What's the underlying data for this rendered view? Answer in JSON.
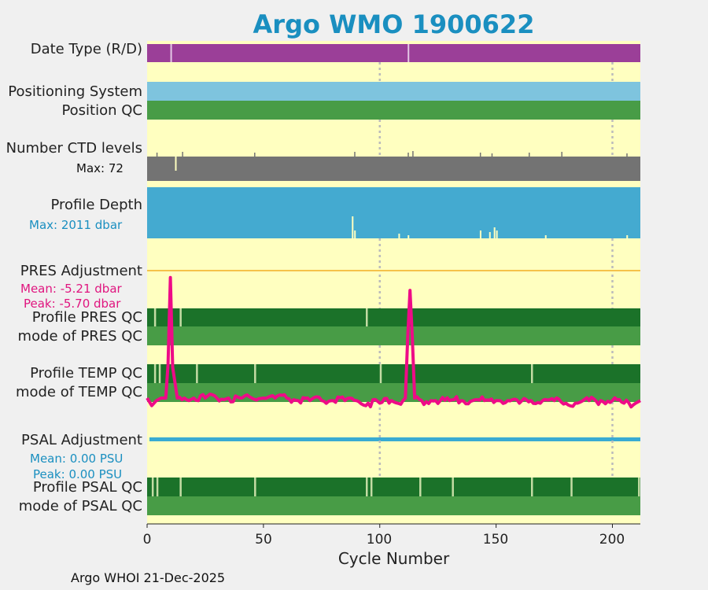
{
  "title": "Argo WMO 1900622",
  "row_labels": {
    "date_type": "Date Type (R/D)",
    "positioning": "Positioning System",
    "position_qc": "Position QC",
    "n_ctd": "Number CTD levels",
    "n_ctd_max": "Max: 72",
    "depth": "Profile Depth",
    "depth_max": "Max: 2011 dbar",
    "pres_adj": "PRES Adjustment",
    "pres_mean": "Mean: -5.21 dbar",
    "pres_peak": "Peak: -5.70 dbar",
    "pres_qc": "Profile PRES QC",
    "pres_mode": "mode of PRES QC",
    "temp_qc": "Profile TEMP QC",
    "temp_mode": "mode of TEMP QC",
    "psal_adj": "PSAL Adjustment",
    "psal_mean": "Mean: 0.00 PSU",
    "psal_peak": "Peak: 0.00 PSU",
    "psal_qc": "Profile PSAL QC",
    "psal_mode": "mode of PSAL QC"
  },
  "colors": {
    "background": "#ffffc0",
    "date_type": "#9b3f98",
    "positioning": "#7ec4de",
    "position_qc": "#489c46",
    "n_ctd": "#737373",
    "depth": "#44aad0",
    "pres_line": "#f5c24a",
    "profile_qc": "#1b7229",
    "mode_qc": "#489c46",
    "pres_adjust_curve": "#ee0b87",
    "psal_line": "#39abd2",
    "depth_label": "#1a8fc0",
    "pres_label": "#e0157f",
    "psal_label": "#1a8fc0"
  },
  "chart_data": {
    "type": "line",
    "xlabel": "Cycle Number",
    "xlim": [
      0,
      212
    ],
    "xticks": [
      "0",
      "50",
      "100",
      "150",
      "200"
    ],
    "grid": "vertical dotted at 100 and 200",
    "series": [
      {
        "x": [
          0,
          2,
          4,
          6,
          8,
          9,
          10,
          11,
          13,
          16,
          20,
          25,
          30,
          35,
          40,
          45,
          50,
          55,
          60,
          65,
          70,
          75,
          80,
          85,
          90,
          95,
          100,
          105,
          110,
          111,
          112,
          113,
          114,
          115,
          118,
          122,
          126,
          130,
          135,
          140,
          145,
          150,
          155,
          160,
          165,
          170,
          175,
          180,
          185,
          190,
          195,
          200,
          205,
          210,
          212
        ],
        "y": [
          -5.22,
          -5.19,
          -5.21,
          -5.22,
          -5.22,
          -5.35,
          -5.69,
          -5.34,
          -5.22,
          -5.22,
          -5.22,
          -5.22,
          -5.22,
          -5.22,
          -5.22,
          -5.22,
          -5.22,
          -5.22,
          -5.22,
          -5.21,
          -5.21,
          -5.21,
          -5.21,
          -5.21,
          -5.21,
          -5.2,
          -5.2,
          -5.21,
          -5.21,
          -5.22,
          -5.45,
          -5.64,
          -5.45,
          -5.22,
          -5.21,
          -5.21,
          -5.21,
          -5.21,
          -5.21,
          -5.21,
          -5.21,
          -5.21,
          -5.21,
          -5.2,
          -5.21,
          -5.21,
          -5.21,
          -5.2,
          -5.2,
          -5.21,
          -5.21,
          -5.21,
          -5.2,
          -5.2,
          -5.21
        ],
        "ylim": [
          -5.72,
          -5.18
        ]
      }
    ]
  }
}
